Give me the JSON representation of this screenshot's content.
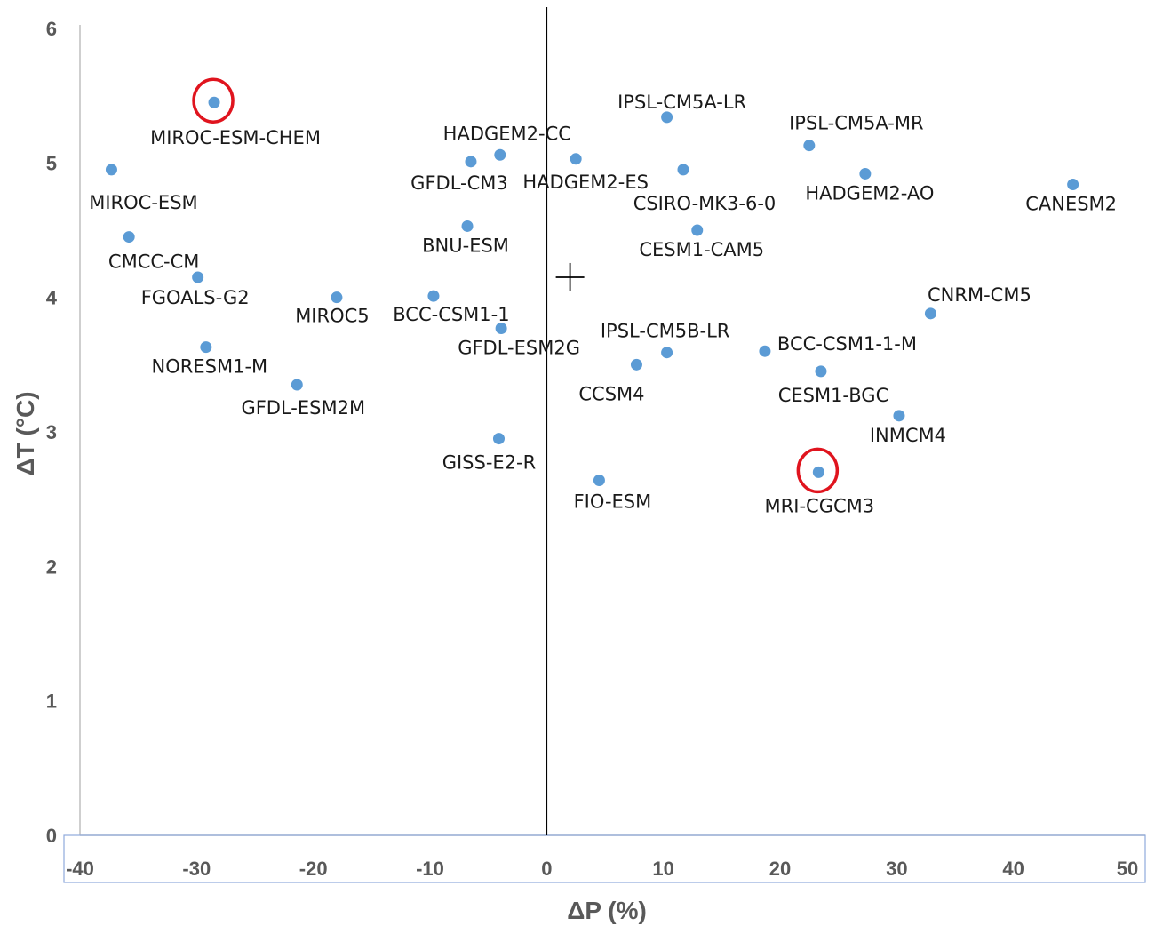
{
  "chart_data": {
    "type": "scatter",
    "title": "",
    "xlabel": "ΔP (%)",
    "ylabel": "ΔT (°C)",
    "xlim": [
      -40,
      50
    ],
    "ylim": [
      0,
      6
    ],
    "x_ticks": [
      "-40",
      "-30",
      "-20",
      "-10",
      "0",
      "10",
      "20",
      "30",
      "40",
      "50"
    ],
    "y_ticks": [
      "0",
      "1",
      "2",
      "3",
      "4",
      "5",
      "6"
    ],
    "grid": false,
    "marker_color": "#5b9bd5",
    "highlight_color": "#e0141e",
    "mean_marker": {
      "x": 2,
      "y": 4.15
    },
    "points": [
      {
        "name": "MIROC-ESM-CHEM",
        "x": -28.5,
        "y": 5.45,
        "highlight": true
      },
      {
        "name": "MIROC-ESM",
        "x": -37.3,
        "y": 4.95
      },
      {
        "name": "CMCC-CM",
        "x": -35.8,
        "y": 4.45
      },
      {
        "name": "FGOALS-G2",
        "x": -29.9,
        "y": 4.15
      },
      {
        "name": "MIROC5",
        "x": -18.0,
        "y": 4.0
      },
      {
        "name": "NORESM1-M",
        "x": -29.2,
        "y": 3.63
      },
      {
        "name": "GFDL-ESM2M",
        "x": -21.4,
        "y": 3.35
      },
      {
        "name": "GFDL-CM3",
        "x": -6.5,
        "y": 5.01
      },
      {
        "name": "HADGEM2-CC",
        "x": -4.0,
        "y": 5.06
      },
      {
        "name": "BNU-ESM",
        "x": -6.8,
        "y": 4.53
      },
      {
        "name": "BCC-CSM1-1",
        "x": -9.7,
        "y": 4.01
      },
      {
        "name": "GFDL-ESM2G",
        "x": -3.9,
        "y": 3.77
      },
      {
        "name": "GISS-E2-R",
        "x": -4.1,
        "y": 2.95
      },
      {
        "name": "HADGEM2-ES",
        "x": 2.5,
        "y": 5.03
      },
      {
        "name": "IPSL-CM5A-LR",
        "x": 10.3,
        "y": 5.34
      },
      {
        "name": "CSIRO-MK3-6-0",
        "x": 11.7,
        "y": 4.95
      },
      {
        "name": "CESM1-CAM5",
        "x": 12.9,
        "y": 4.5
      },
      {
        "name": "IPSL-CM5B-LR",
        "x": 10.3,
        "y": 3.59
      },
      {
        "name": "CCSM4",
        "x": 7.7,
        "y": 3.5
      },
      {
        "name": "FIO-ESM",
        "x": 4.5,
        "y": 2.64
      },
      {
        "name": "IPSL-CM5A-MR",
        "x": 22.5,
        "y": 5.13
      },
      {
        "name": "HADGEM2-AO",
        "x": 27.3,
        "y": 4.92
      },
      {
        "name": "BCC-CSM1-1-M",
        "x": 18.7,
        "y": 3.6
      },
      {
        "name": "CESM1-BGC",
        "x": 23.5,
        "y": 3.45
      },
      {
        "name": "INMCM4",
        "x": 30.2,
        "y": 3.12
      },
      {
        "name": "MRI-CGCM3",
        "x": 23.3,
        "y": 2.7,
        "highlight": true
      },
      {
        "name": "CNRM-CM5",
        "x": 32.9,
        "y": 3.88
      },
      {
        "name": "CANESM2",
        "x": 45.1,
        "y": 4.84
      }
    ]
  }
}
